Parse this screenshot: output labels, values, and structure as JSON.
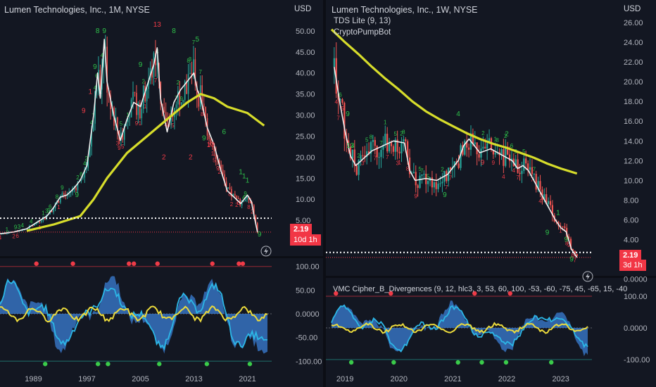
{
  "colors": {
    "background": "#131722",
    "price_line": "#f0f0f0",
    "ma_line": "#d7dd2b",
    "bull_count": "#2ec24a",
    "bear_count": "#ef3b47",
    "current_price": "#f23645",
    "wave_fill": "#3b7fd6",
    "wave_line": "#2cb7e6",
    "money_flow": "#ecdb3c"
  },
  "chart_data": [
    {
      "type": "line",
      "title": "Lumen Technologies, Inc., 1M, NYSE",
      "currency_label": "USD",
      "x_tick_labels": [
        "1989",
        "1997",
        "2005",
        "2013",
        "2021"
      ],
      "x_ticks": [
        1989,
        1997,
        2005,
        2013,
        2021
      ],
      "xlim": [
        1984,
        2024
      ],
      "ylim": [
        -0.5,
        54
      ],
      "y_tick_labels": [
        "50.00",
        "45.00",
        "40.00",
        "35.00",
        "30.00",
        "25.00",
        "20.00",
        "15.00",
        "10.00",
        "5.00"
      ],
      "y_ticks": [
        50,
        45,
        40,
        35,
        30,
        25,
        20,
        15,
        10,
        5
      ],
      "scale": "linear",
      "last_price_label": "2.19",
      "countdown_label": "10d 1h",
      "last_price": 2.19,
      "dotted_level": 5.5,
      "series": [
        {
          "values_x": [
            1984,
            1986,
            1988,
            1990,
            1991,
            1992,
            1993,
            1994,
            1995,
            1996,
            1997,
            1998,
            1998.6,
            1999,
            1999.6,
            2000,
            2001,
            2002,
            2003,
            2004,
            2005,
            2006,
            2007,
            2007.5,
            2008,
            2009,
            2010,
            2011,
            2012,
            2013,
            2013.5,
            2014,
            2015,
            2016,
            2017,
            2018,
            2019,
            2020,
            2021,
            2021.6,
            2022,
            2022.5
          ],
          "values_y": [
            1.8,
            2.2,
            3.0,
            5.0,
            6.0,
            8.0,
            10.5,
            11.0,
            12.5,
            14.5,
            18.0,
            30.0,
            40.0,
            34.0,
            48.0,
            38.0,
            30.0,
            24.0,
            29.0,
            33.0,
            32.0,
            37.0,
            42.0,
            46.0,
            34.0,
            26.0,
            33.0,
            36.0,
            38.0,
            40.0,
            36.0,
            34.0,
            27.0,
            23.0,
            17.0,
            12.0,
            10.5,
            9.0,
            11.0,
            9.5,
            6.0,
            2.19
          ]
        },
        {
          "values_x": [
            1988,
            1992,
            1996,
            1998,
            2000,
            2003,
            2006,
            2009,
            2012,
            2014,
            2016,
            2018,
            2021,
            2023.5
          ],
          "values_y": [
            2.5,
            4.0,
            6.0,
            10.0,
            15.0,
            21.0,
            25.0,
            29.0,
            33.0,
            35.0,
            34.0,
            32.0,
            30.5,
            27.5
          ]
        }
      ],
      "count_labels": [
        {
          "x": 1999.6,
          "y": 49.5,
          "text": "9",
          "type": "bull"
        },
        {
          "x": 1998.6,
          "y": 49.5,
          "text": "8",
          "type": "bull"
        },
        {
          "x": 2007.5,
          "y": 51.0,
          "text": "13",
          "type": "bear"
        },
        {
          "x": 2010,
          "y": 49.5,
          "text": "8",
          "type": "bull"
        },
        {
          "x": 2013.5,
          "y": 47.5,
          "text": "5",
          "type": "bull"
        },
        {
          "x": 2005,
          "y": 41.5,
          "text": "9",
          "type": "bull"
        },
        {
          "x": 1998.2,
          "y": 41.0,
          "text": "9",
          "type": "bull"
        },
        {
          "x": 1997.5,
          "y": 35.0,
          "text": "1",
          "type": "bear"
        },
        {
          "x": 1996.5,
          "y": 30.5,
          "text": "9",
          "type": "bear"
        },
        {
          "x": 2008.5,
          "y": 19.5,
          "text": "2",
          "type": "bear"
        },
        {
          "x": 2012.5,
          "y": 19.5,
          "text": "2",
          "type": "bear"
        },
        {
          "x": 2017.5,
          "y": 25.5,
          "text": "6",
          "type": "bull"
        },
        {
          "x": 2015.5,
          "y": 22.5,
          "text": "13",
          "type": "bear"
        },
        {
          "x": 2014.5,
          "y": 24.0,
          "text": "9",
          "type": "bull"
        },
        {
          "x": 2020.0,
          "y": 16.0,
          "text": "1",
          "type": "bull"
        },
        {
          "x": 2020.5,
          "y": 15.0,
          "text": "1",
          "type": "bull"
        },
        {
          "x": 2021.0,
          "y": 14.0,
          "text": "1",
          "type": "bull"
        },
        {
          "x": 1995.5,
          "y": 10.5,
          "text": "9",
          "type": "bull"
        },
        {
          "x": 2022.8,
          "y": 1.2,
          "text": "9",
          "type": "bull"
        }
      ],
      "indicator": {
        "y_tick_labels": [
          "100.00",
          "50.00",
          "0.0000",
          "-50.00",
          "-100.00"
        ],
        "y_ticks": [
          100,
          50,
          0,
          -50,
          -100
        ],
        "ylim": [
          -110,
          110
        ]
      }
    },
    {
      "type": "line",
      "title": "Lumen Technologies, Inc., 1W, NYSE",
      "currency_label": "USD",
      "study_1": "TDS Lite (9, 13)",
      "study_2": "CryptoPumpBot",
      "indicator_label": "VMC Cipher_B_Divergences (9, 12, hlc3, 3, 53, 60, 100, -53, -60, -75, 45, -65, 15, -40",
      "x_tick_labels": [
        "2019",
        "2020",
        "2021",
        "2022",
        "2023"
      ],
      "x_ticks": [
        2019,
        2020,
        2021,
        2022,
        2023
      ],
      "xlim": [
        2018.75,
        2023.5
      ],
      "ylim": [
        -0.1,
        27
      ],
      "y_tick_labels": [
        "26.00",
        "24.00",
        "22.00",
        "20.00",
        "18.00",
        "16.00",
        "14.00",
        "12.00",
        "10.00",
        "8.00",
        "6.00",
        "4.00",
        "0.0000"
      ],
      "y_ticks": [
        26,
        24,
        22,
        20,
        18,
        16,
        14,
        12,
        10,
        8,
        6,
        4,
        0
      ],
      "scale": "linear",
      "last_price_label": "2.19",
      "countdown_label": "3d 1h",
      "last_price": 2.19,
      "dotted_level": 2.7,
      "series": [
        {
          "values_x": [
            2018.8,
            2018.9,
            2019.0,
            2019.1,
            2019.2,
            2019.3,
            2019.5,
            2019.7,
            2019.9,
            2020.1,
            2020.2,
            2020.3,
            2020.5,
            2020.7,
            2020.9,
            2021.1,
            2021.2,
            2021.3,
            2021.4,
            2021.5,
            2021.7,
            2021.9,
            2022.1,
            2022.2,
            2022.3,
            2022.4,
            2022.5,
            2022.6,
            2022.7,
            2022.8,
            2022.9,
            2023.0,
            2023.1,
            2023.2,
            2023.3
          ],
          "values_y": [
            21.5,
            18.0,
            15.0,
            12.5,
            11.5,
            12.0,
            13.0,
            13.5,
            14.0,
            13.8,
            11.0,
            10.0,
            10.2,
            10.0,
            10.6,
            12.0,
            13.5,
            14.2,
            13.5,
            12.8,
            13.2,
            12.6,
            12.0,
            11.2,
            11.5,
            11.0,
            10.0,
            9.0,
            8.0,
            7.0,
            6.0,
            5.2,
            4.8,
            3.0,
            2.19
          ]
        },
        {
          "values_x": [
            2018.75,
            2019.0,
            2019.25,
            2019.5,
            2019.75,
            2020.0,
            2020.25,
            2020.5,
            2020.75,
            2021.0,
            2021.25,
            2021.5,
            2021.75,
            2022.0,
            2022.25,
            2022.5,
            2022.75,
            2023.0,
            2023.3
          ],
          "values_y": [
            25.3,
            24.0,
            22.8,
            21.5,
            20.3,
            19.2,
            18.0,
            17.0,
            16.2,
            15.5,
            14.8,
            14.2,
            13.7,
            13.3,
            12.8,
            12.3,
            11.7,
            11.2,
            10.7
          ]
        }
      ],
      "count_labels": [
        {
          "x": 2019.05,
          "y": 16.5,
          "text": "9",
          "type": "bull"
        },
        {
          "x": 2019.1,
          "y": 13.3,
          "text": "13",
          "type": "bull"
        },
        {
          "x": 2021.1,
          "y": 16.5,
          "text": "4",
          "type": "bull"
        },
        {
          "x": 2022.0,
          "y": 14.5,
          "text": "2",
          "type": "bull"
        },
        {
          "x": 2021.55,
          "y": 11.6,
          "text": "9",
          "type": "bear"
        },
        {
          "x": 2020.85,
          "y": 8.3,
          "text": "9",
          "type": "bull"
        },
        {
          "x": 2022.95,
          "y": 6.5,
          "text": "1",
          "type": "bull"
        },
        {
          "x": 2022.75,
          "y": 4.5,
          "text": "9",
          "type": "bull"
        },
        {
          "x": 2023.1,
          "y": 3.8,
          "text": "9",
          "type": "bull"
        },
        {
          "x": 2023.2,
          "y": 1.8,
          "text": "9",
          "type": "bull"
        }
      ],
      "indicator": {
        "y_tick_labels": [
          "100.00",
          "0.0000",
          "-100.00"
        ],
        "y_ticks": [
          100,
          0,
          -100
        ],
        "ylim": [
          -120,
          120
        ]
      }
    }
  ]
}
